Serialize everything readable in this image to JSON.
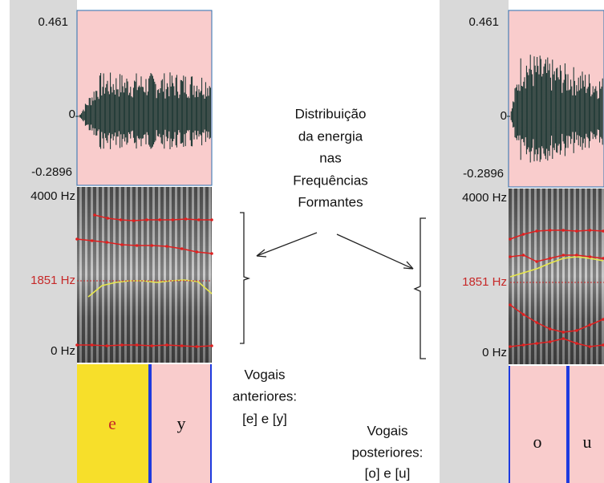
{
  "left_panel": {
    "amplitude_labels": [
      "0.461",
      "0",
      "-0.2896"
    ],
    "frequency_labels": [
      "4000 Hz",
      "1851 Hz",
      "0 Hz"
    ],
    "segments": [
      "e",
      "y"
    ]
  },
  "right_panel": {
    "amplitude_labels": [
      "0.461",
      "0",
      "-0.2896"
    ],
    "frequency_labels": [
      "4000 Hz",
      "1851 Hz",
      "0 Hz"
    ],
    "segments": [
      "o",
      "u"
    ]
  },
  "center_annotation": [
    "Distribuição",
    "da energia",
    "nas",
    "Frequências",
    "Formantes"
  ],
  "front_vowels": [
    "Vogais",
    "anteriores:",
    "[e] e  [y]"
  ],
  "back_vowels": [
    "Vogais",
    "posteriores:",
    "[o] e  [u]"
  ]
}
